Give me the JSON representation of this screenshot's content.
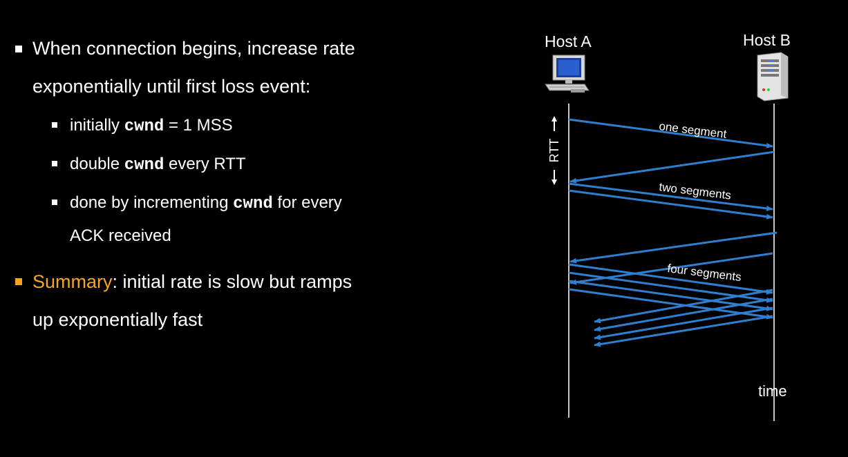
{
  "bullets": {
    "main1_line1": "When connection begins, increase rate",
    "main1_line2": "exponentially until first loss event:",
    "sub1_pre": "initially ",
    "sub1_code": "cwnd",
    "sub1_post": " = 1 MSS",
    "sub2_pre": "double ",
    "sub2_code": "cwnd",
    "sub2_post": " every RTT",
    "sub3_pre": "done by incrementing ",
    "sub3_code": "cwnd",
    "sub3_post": " for every",
    "sub3_line2": "ACK received",
    "summary_label": "Summary",
    "summary_rest": ": initial rate is slow but ramps",
    "summary_line2": "up exponentially fast"
  },
  "diagram": {
    "host_a": "Host A",
    "host_b": "Host B",
    "rtt_label": "RTT",
    "label_one": "one segment",
    "label_two": "two segments",
    "label_four": "four segments",
    "time_label": "time",
    "host_a_icon": "desktop-computer-icon",
    "host_b_icon": "server-icon"
  },
  "colors": {
    "background": "#000000",
    "text": "#ffffff",
    "accent": "#f5a623",
    "arrow": "#2f7fd0"
  }
}
